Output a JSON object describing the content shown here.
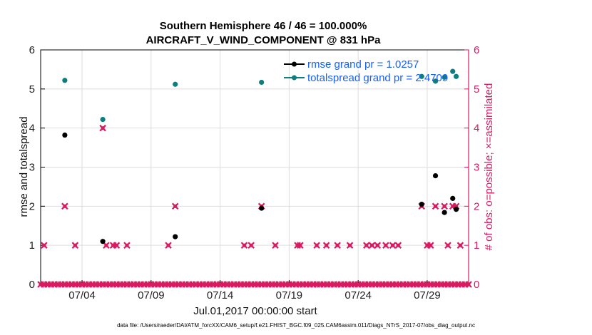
{
  "chart_data": {
    "type": "scatter",
    "title": "Southern Hemisphere 46 / 46 = 100.000%",
    "subtitle": "AIRCRAFT_V_WIND_COMPONENT @ 831 hPa",
    "xlabel": "Jul.01,2017 00:00:00 start",
    "ylabel": "rmse and totalspread",
    "ylabel_right": "# of obs: o=possible; ×=assimilated",
    "xlim": [
      0,
      31
    ],
    "ylim": [
      0,
      6
    ],
    "ylim_right": [
      0,
      6
    ],
    "x_ticks": [
      {
        "value": 3,
        "label": "07/04"
      },
      {
        "value": 8,
        "label": "07/09"
      },
      {
        "value": 13,
        "label": "07/14"
      },
      {
        "value": 18,
        "label": "07/19"
      },
      {
        "value": 23,
        "label": "07/24"
      },
      {
        "value": 28,
        "label": "07/29"
      }
    ],
    "y_ticks": [
      "0",
      "1",
      "2",
      "3",
      "4",
      "5",
      "6"
    ],
    "y_ticks_right": [
      "0",
      "1",
      "2",
      "3",
      "4",
      "5",
      "6"
    ],
    "grid": true,
    "legend_position": "top-right",
    "series": [
      {
        "name": "rmse",
        "legend": "rmse grand pr = 1.0257",
        "color": "#000000",
        "axis": "left",
        "points": [
          [
            1.75,
            3.82
          ],
          [
            4.5,
            1.1
          ],
          [
            9.75,
            1.22
          ],
          [
            16.0,
            1.95
          ],
          [
            27.6,
            2.05
          ],
          [
            28.6,
            2.78
          ],
          [
            29.25,
            1.84
          ],
          [
            29.85,
            2.2
          ],
          [
            30.1,
            1.92
          ]
        ]
      },
      {
        "name": "totalspread",
        "legend": "totalspread grand pr = 2.4709",
        "color": "#0d7d7d",
        "axis": "left",
        "points": [
          [
            1.75,
            5.22
          ],
          [
            4.5,
            4.22
          ],
          [
            9.75,
            5.12
          ],
          [
            16.0,
            5.17
          ],
          [
            27.6,
            5.32
          ],
          [
            28.6,
            5.2
          ],
          [
            29.25,
            5.3
          ],
          [
            29.85,
            5.45
          ],
          [
            30.1,
            5.32
          ]
        ]
      },
      {
        "name": "obs_count",
        "color": "#d81b60",
        "axis": "right",
        "points": [
          [
            0.25,
            1
          ],
          [
            1.75,
            2
          ],
          [
            2.5,
            1
          ],
          [
            4.5,
            4
          ],
          [
            4.75,
            1
          ],
          [
            5.25,
            1
          ],
          [
            5.5,
            1
          ],
          [
            6.25,
            1
          ],
          [
            9.25,
            1
          ],
          [
            9.75,
            2
          ],
          [
            14.75,
            1
          ],
          [
            15.25,
            1
          ],
          [
            16.0,
            2
          ],
          [
            17.0,
            1
          ],
          [
            18.6,
            1
          ],
          [
            18.8,
            1
          ],
          [
            20.0,
            1
          ],
          [
            20.7,
            1
          ],
          [
            21.5,
            1
          ],
          [
            22.4,
            1
          ],
          [
            23.6,
            1
          ],
          [
            24.0,
            1
          ],
          [
            24.4,
            1
          ],
          [
            25.0,
            1
          ],
          [
            25.5,
            1
          ],
          [
            25.9,
            1
          ],
          [
            27.6,
            2
          ],
          [
            28.0,
            1
          ],
          [
            28.25,
            1
          ],
          [
            28.6,
            2
          ],
          [
            29.25,
            2
          ],
          [
            29.5,
            1
          ],
          [
            29.85,
            2
          ],
          [
            30.1,
            2
          ],
          [
            30.4,
            1
          ],
          [
            0.0,
            0
          ],
          [
            0.25,
            0
          ],
          [
            0.5,
            0
          ],
          [
            0.75,
            0
          ],
          [
            1.0,
            0
          ],
          [
            1.25,
            0
          ],
          [
            1.5,
            0
          ],
          [
            1.75,
            0
          ],
          [
            2.0,
            0
          ],
          [
            2.25,
            0
          ],
          [
            2.5,
            0
          ],
          [
            2.75,
            0
          ],
          [
            3.0,
            0
          ],
          [
            3.25,
            0
          ],
          [
            3.5,
            0
          ],
          [
            3.75,
            0
          ],
          [
            4.0,
            0
          ],
          [
            4.25,
            0
          ],
          [
            4.5,
            0
          ],
          [
            4.75,
            0
          ],
          [
            5.0,
            0
          ],
          [
            5.25,
            0
          ],
          [
            5.5,
            0
          ],
          [
            5.75,
            0
          ],
          [
            6.0,
            0
          ],
          [
            6.25,
            0
          ],
          [
            6.5,
            0
          ],
          [
            6.75,
            0
          ],
          [
            7.0,
            0
          ],
          [
            7.25,
            0
          ],
          [
            7.5,
            0
          ],
          [
            7.75,
            0
          ],
          [
            8.0,
            0
          ],
          [
            8.25,
            0
          ],
          [
            8.5,
            0
          ],
          [
            8.75,
            0
          ],
          [
            9.0,
            0
          ],
          [
            9.25,
            0
          ],
          [
            9.5,
            0
          ],
          [
            9.75,
            0
          ],
          [
            10.0,
            0
          ],
          [
            10.25,
            0
          ],
          [
            10.5,
            0
          ],
          [
            10.75,
            0
          ],
          [
            11.0,
            0
          ],
          [
            11.25,
            0
          ],
          [
            11.5,
            0
          ],
          [
            11.75,
            0
          ],
          [
            12.0,
            0
          ],
          [
            12.25,
            0
          ],
          [
            12.5,
            0
          ],
          [
            12.75,
            0
          ],
          [
            13.0,
            0
          ],
          [
            13.25,
            0
          ],
          [
            13.5,
            0
          ],
          [
            13.75,
            0
          ],
          [
            14.0,
            0
          ],
          [
            14.25,
            0
          ],
          [
            14.5,
            0
          ],
          [
            14.75,
            0
          ],
          [
            15.0,
            0
          ],
          [
            15.25,
            0
          ],
          [
            15.5,
            0
          ],
          [
            15.75,
            0
          ],
          [
            16.0,
            0
          ],
          [
            16.25,
            0
          ],
          [
            16.5,
            0
          ],
          [
            16.75,
            0
          ],
          [
            17.0,
            0
          ],
          [
            17.25,
            0
          ],
          [
            17.5,
            0
          ],
          [
            17.75,
            0
          ],
          [
            18.0,
            0
          ],
          [
            18.25,
            0
          ],
          [
            18.5,
            0
          ],
          [
            18.75,
            0
          ],
          [
            19.0,
            0
          ],
          [
            19.25,
            0
          ],
          [
            19.5,
            0
          ],
          [
            19.75,
            0
          ],
          [
            20.0,
            0
          ],
          [
            20.25,
            0
          ],
          [
            20.5,
            0
          ],
          [
            20.75,
            0
          ],
          [
            21.0,
            0
          ],
          [
            21.25,
            0
          ],
          [
            21.5,
            0
          ],
          [
            21.75,
            0
          ],
          [
            22.0,
            0
          ],
          [
            22.25,
            0
          ],
          [
            22.5,
            0
          ],
          [
            22.75,
            0
          ],
          [
            23.0,
            0
          ],
          [
            23.25,
            0
          ],
          [
            23.5,
            0
          ],
          [
            23.75,
            0
          ],
          [
            24.0,
            0
          ],
          [
            24.25,
            0
          ],
          [
            24.5,
            0
          ],
          [
            24.75,
            0
          ],
          [
            25.0,
            0
          ],
          [
            25.25,
            0
          ],
          [
            25.5,
            0
          ],
          [
            25.75,
            0
          ],
          [
            26.0,
            0
          ],
          [
            26.25,
            0
          ],
          [
            26.5,
            0
          ],
          [
            26.75,
            0
          ],
          [
            27.0,
            0
          ],
          [
            27.25,
            0
          ],
          [
            27.5,
            0
          ],
          [
            27.75,
            0
          ],
          [
            28.0,
            0
          ],
          [
            28.25,
            0
          ],
          [
            28.5,
            0
          ],
          [
            28.75,
            0
          ],
          [
            29.0,
            0
          ],
          [
            29.25,
            0
          ],
          [
            29.5,
            0
          ],
          [
            29.75,
            0
          ],
          [
            30.0,
            0
          ],
          [
            30.25,
            0
          ],
          [
            30.5,
            0
          ],
          [
            30.75,
            0
          ],
          [
            31.0,
            0
          ]
        ]
      }
    ],
    "footnote": "data file: /Users/raeder/DAI/ATM_forcXX/CAM6_setup/f.e21.FHIST_BGC.f09_025.CAM6assim.011/Diags_NTrS_2017-07/obs_diag_output.nc"
  }
}
